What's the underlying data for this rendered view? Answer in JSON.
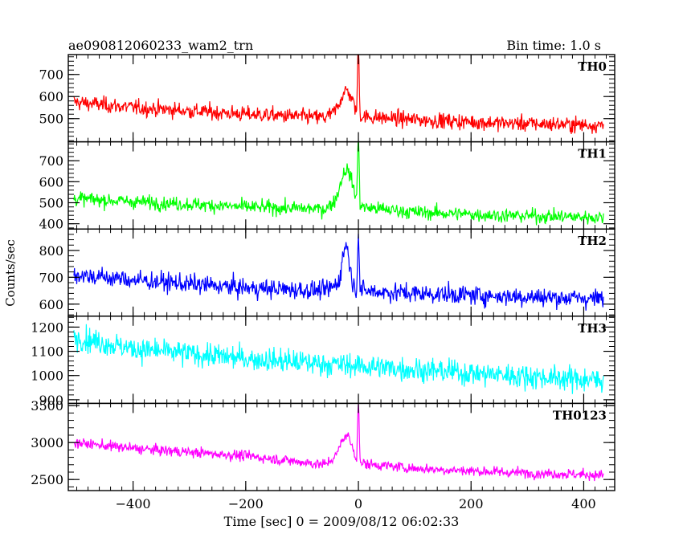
{
  "header": {
    "title": "ae090812060233_wam2_trn",
    "bin_time": "Bin time: 1.0 s"
  },
  "chart_data": {
    "type": "line",
    "title": "ae090812060233_wam2_trn",
    "subtitle": "Bin time: 1.0 s",
    "xlabel": "Time [sec] 0 = 2009/08/12 06:02:33",
    "ylabel": "Counts/sec",
    "xlim": [
      -515,
      455
    ],
    "xticks": [
      -400,
      -200,
      0,
      200,
      400
    ],
    "grid": false,
    "legend": "none",
    "panels": [
      {
        "name": "TH0",
        "color": "#ff0000",
        "ylim": [
          395,
          790
        ],
        "yticks": [
          500,
          600,
          700
        ],
        "trend": [
          [
            -505,
            575
          ],
          [
            -400,
            550
          ],
          [
            -200,
            520
          ],
          [
            -60,
            505
          ],
          [
            -30,
            540
          ],
          [
            0,
            510
          ],
          [
            100,
            495
          ],
          [
            250,
            480
          ],
          [
            435,
            470
          ]
        ],
        "noise": 30,
        "features": [
          {
            "t": -20,
            "amp": 95,
            "width": 10
          },
          {
            "t": 0,
            "amp": 295,
            "width": 1.5
          }
        ]
      },
      {
        "name": "TH1",
        "color": "#00ff00",
        "ylim": [
          375,
          790
        ],
        "yticks": [
          400,
          500,
          600,
          700
        ],
        "trend": [
          [
            -505,
            520
          ],
          [
            -400,
            505
          ],
          [
            -200,
            480
          ],
          [
            -60,
            470
          ],
          [
            -30,
            520
          ],
          [
            0,
            480
          ],
          [
            100,
            455
          ],
          [
            250,
            440
          ],
          [
            435,
            430
          ]
        ],
        "noise": 28,
        "features": [
          {
            "t": -20,
            "amp": 150,
            "width": 10
          },
          {
            "t": 0,
            "amp": 310,
            "width": 1.5
          }
        ]
      },
      {
        "name": "TH2",
        "color": "#0000ff",
        "ylim": [
          555,
          880
        ],
        "yticks": [
          600,
          700,
          800
        ],
        "trend": [
          [
            -505,
            710
          ],
          [
            -400,
            690
          ],
          [
            -200,
            660
          ],
          [
            -60,
            650
          ],
          [
            -30,
            680
          ],
          [
            0,
            650
          ],
          [
            100,
            640
          ],
          [
            250,
            630
          ],
          [
            435,
            620
          ]
        ],
        "noise": 30,
        "features": [
          {
            "t": -22,
            "amp": 150,
            "width": 6
          },
          {
            "t": 0,
            "amp": 220,
            "width": 1.5
          }
        ]
      },
      {
        "name": "TH3",
        "color": "#00ffff",
        "ylim": [
          885,
          1245
        ],
        "yticks": [
          900,
          1000,
          1100,
          1200
        ],
        "trend": [
          [
            -505,
            1160
          ],
          [
            -400,
            1110
          ],
          [
            -200,
            1070
          ],
          [
            0,
            1040
          ],
          [
            200,
            1010
          ],
          [
            435,
            980
          ]
        ],
        "noise": 42,
        "features": []
      },
      {
        "name": "TH0123",
        "color": "#ff00ff",
        "ylim": [
          2350,
          3530
        ],
        "yticks": [
          2500,
          3000,
          3500
        ],
        "trend": [
          [
            -505,
            3000
          ],
          [
            -400,
            2920
          ],
          [
            -200,
            2820
          ],
          [
            -60,
            2700
          ],
          [
            -30,
            2860
          ],
          [
            0,
            2720
          ],
          [
            100,
            2650
          ],
          [
            250,
            2600
          ],
          [
            435,
            2560
          ]
        ],
        "noise": 60,
        "features": [
          {
            "t": -20,
            "amp": 280,
            "width": 9
          },
          {
            "t": 0,
            "amp": 800,
            "width": 1.5
          }
        ]
      }
    ]
  }
}
